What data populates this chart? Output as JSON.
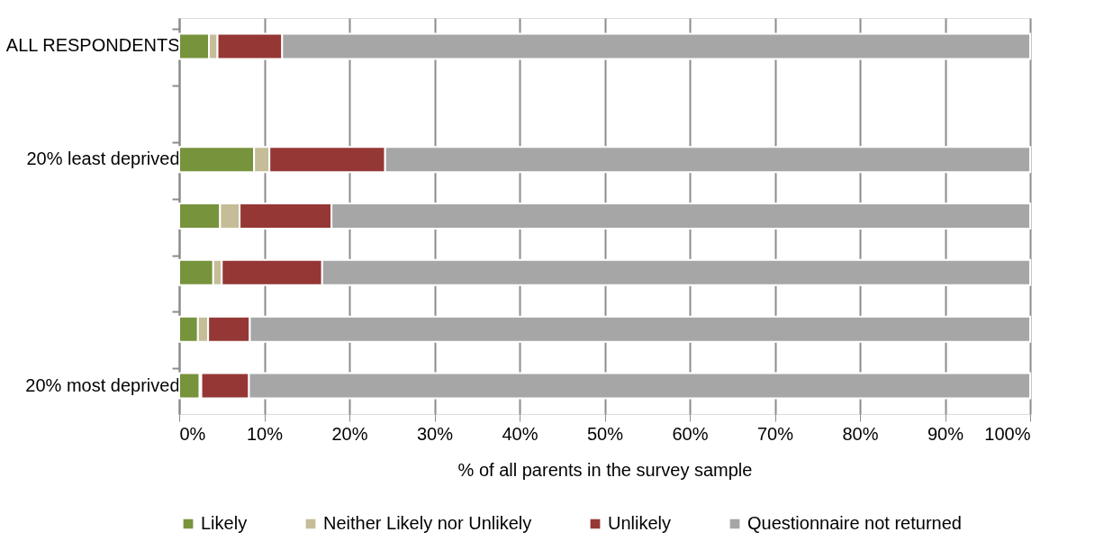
{
  "chart_data": {
    "type": "bar",
    "orientation": "horizontal",
    "stacked": true,
    "categories": [
      "ALL RESPONDENTS",
      null,
      "20% least deprived",
      null,
      null,
      null,
      "20% most deprived"
    ],
    "series": [
      {
        "name": "Likely",
        "color": "#77933c",
        "values": [
          3.5,
          null,
          8.8,
          4.8,
          4.0,
          2.2,
          2.4
        ]
      },
      {
        "name": "Neither Likely nor Unlikely",
        "color": "#c4bd97",
        "values": [
          1.0,
          null,
          1.8,
          2.3,
          1.0,
          1.2,
          0.2
        ]
      },
      {
        "name": "Unlikely",
        "color": "#953735",
        "values": [
          7.6,
          null,
          13.6,
          10.8,
          11.8,
          4.9,
          5.6
        ]
      },
      {
        "name": "Questionnaire not returned",
        "color": "#a6a6a6",
        "values": [
          87.9,
          null,
          75.8,
          82.1,
          83.2,
          91.7,
          91.8
        ]
      }
    ],
    "xlim": [
      0,
      100
    ],
    "xticks": [
      {
        "value": 0,
        "label": "0%"
      },
      {
        "value": 10,
        "label": "10%"
      },
      {
        "value": 20,
        "label": "20%"
      },
      {
        "value": 30,
        "label": "30%"
      },
      {
        "value": 40,
        "label": "40%"
      },
      {
        "value": 50,
        "label": "50%"
      },
      {
        "value": 60,
        "label": "60%"
      },
      {
        "value": 70,
        "label": "70%"
      },
      {
        "value": 80,
        "label": "80%"
      },
      {
        "value": 90,
        "label": "90%"
      },
      {
        "value": 100,
        "label": "100%"
      }
    ],
    "xlabel": "% of all parents in the survey sample",
    "grid": "x",
    "legend": "bottom"
  }
}
